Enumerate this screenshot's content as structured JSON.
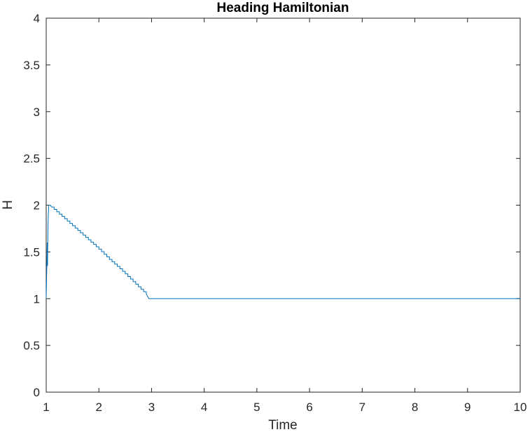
{
  "chart_data": {
    "type": "line",
    "title": "Heading Hamiltonian",
    "xlabel": "Time",
    "ylabel": "H",
    "xlim": [
      1,
      10
    ],
    "ylim": [
      0,
      4
    ],
    "xticks": [
      "1",
      "2",
      "3",
      "4",
      "5",
      "6",
      "7",
      "8",
      "9",
      "10"
    ],
    "yticks": [
      "0",
      "0.5",
      "1",
      "1.5",
      "2",
      "2.5",
      "3",
      "3.5",
      "4"
    ],
    "grid": false,
    "box": true,
    "series": [
      {
        "color": "#0072BD",
        "x": [
          1.0,
          1.01,
          1.02,
          1.025,
          1.03,
          1.035,
          1.04,
          1.05,
          1.06,
          1.08,
          1.1,
          1.2,
          1.4,
          1.6,
          1.8,
          2.0,
          2.2,
          2.4,
          2.6,
          2.8,
          2.9,
          2.95,
          3.0,
          4.0,
          5.0,
          6.0,
          7.0,
          8.0,
          9.0,
          10.0
        ],
        "y": [
          1.0,
          1.3,
          1.6,
          1.35,
          1.6,
          1.8,
          1.9,
          2.0,
          2.0,
          2.0,
          1.98,
          1.93,
          1.83,
          1.73,
          1.63,
          1.53,
          1.42,
          1.32,
          1.21,
          1.1,
          1.05,
          1.0,
          1.0,
          1.0,
          1.0,
          1.0,
          1.0,
          1.0,
          1.0,
          1.0
        ]
      }
    ]
  }
}
